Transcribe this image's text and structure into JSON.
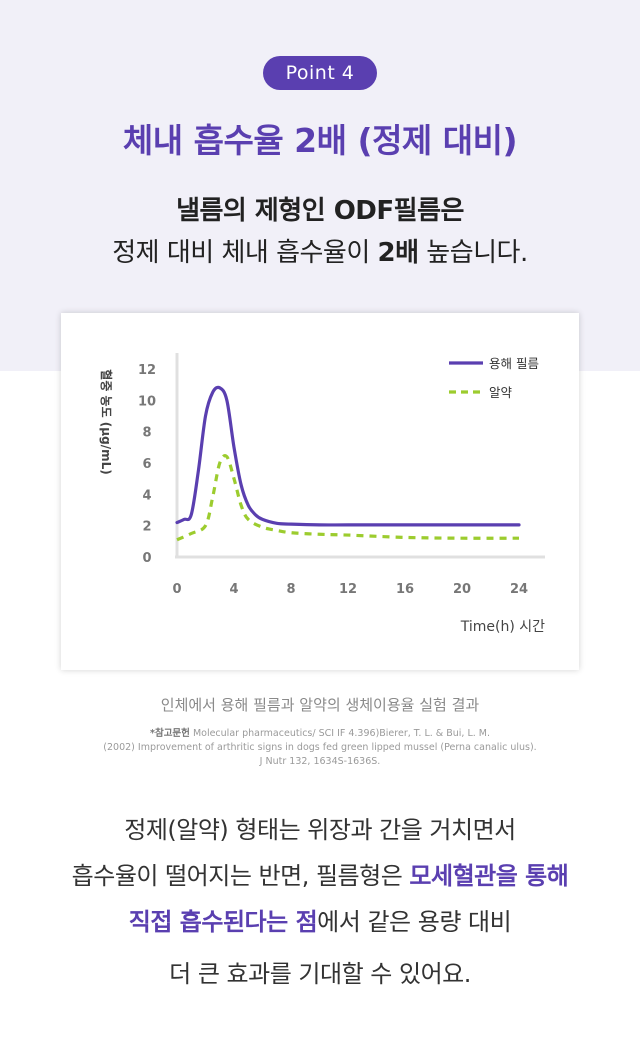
{
  "badge": "Point 4",
  "headline": "체내 흡수율 2배 (정제 대비)",
  "subtitle_line1": "낼름의 제형인 ODF필름은",
  "subtitle_line2_pre": "정제 대비 체내 흡수율이 ",
  "subtitle_line2_bold": "2배",
  "subtitle_line2_post": " 높습니다.",
  "chart_data": {
    "type": "line",
    "ylabel": "혈중 농도 (μg/mL)",
    "xlabel": "Time(h) 시간",
    "xlim": [
      0,
      24
    ],
    "ylim": [
      0,
      12
    ],
    "x_ticks": [
      0,
      4,
      8,
      12,
      16,
      20,
      24
    ],
    "y_ticks": [
      0,
      2,
      4,
      6,
      8,
      10,
      12
    ],
    "grid": false,
    "legend_position": "top-right",
    "series": [
      {
        "name": "용해 필름",
        "color": "#5a3fb0",
        "style": "solid",
        "x": [
          0,
          0.5,
          1,
          1.5,
          2,
          2.5,
          3,
          3.5,
          4,
          4.5,
          5,
          5.5,
          6,
          7,
          8,
          10,
          12,
          16,
          20,
          24
        ],
        "y": [
          2.2,
          2.4,
          2.7,
          5.5,
          9.0,
          10.5,
          10.8,
          10.0,
          7.0,
          4.6,
          3.3,
          2.7,
          2.4,
          2.15,
          2.1,
          2.05,
          2.05,
          2.05,
          2.05,
          2.05
        ]
      },
      {
        "name": "알약",
        "color": "#9ccc2e",
        "style": "dashed",
        "x": [
          0,
          1,
          2,
          2.5,
          3,
          3.5,
          4,
          4.5,
          5,
          6,
          7,
          8,
          10,
          12,
          16,
          20,
          24
        ],
        "y": [
          1.1,
          1.5,
          2.0,
          3.8,
          6.0,
          6.4,
          5.0,
          3.3,
          2.4,
          1.9,
          1.7,
          1.55,
          1.45,
          1.4,
          1.25,
          1.2,
          1.2
        ]
      }
    ]
  },
  "caption": "인체에서 용해 필름과 알약의 생체이용율 실험 결과",
  "reference": {
    "label": "*참고문헌",
    "line1": " Molecular pharmaceutics/ SCI IF 4.396)Bierer, T. L. & Bui, L. M.",
    "line2": "(2002) Improvement of arthritic signs in dogs fed green lipped mussel (Perna canalic ulus).",
    "line3": "J Nutr 132, 1634S-1636S."
  },
  "body": {
    "line1": "정제(알약) 형태는 위장과 간을 거치면서",
    "line2_pre": "흡수율이 떨어지는 반면, 필름형은 ",
    "line2_hl": "모세혈관을 통해",
    "line3_hl": "직접 흡수된다는 점",
    "line3_post": "에서 같은 용량 대비",
    "line4": "더 큰 효과를 기대할 수 있어요."
  }
}
